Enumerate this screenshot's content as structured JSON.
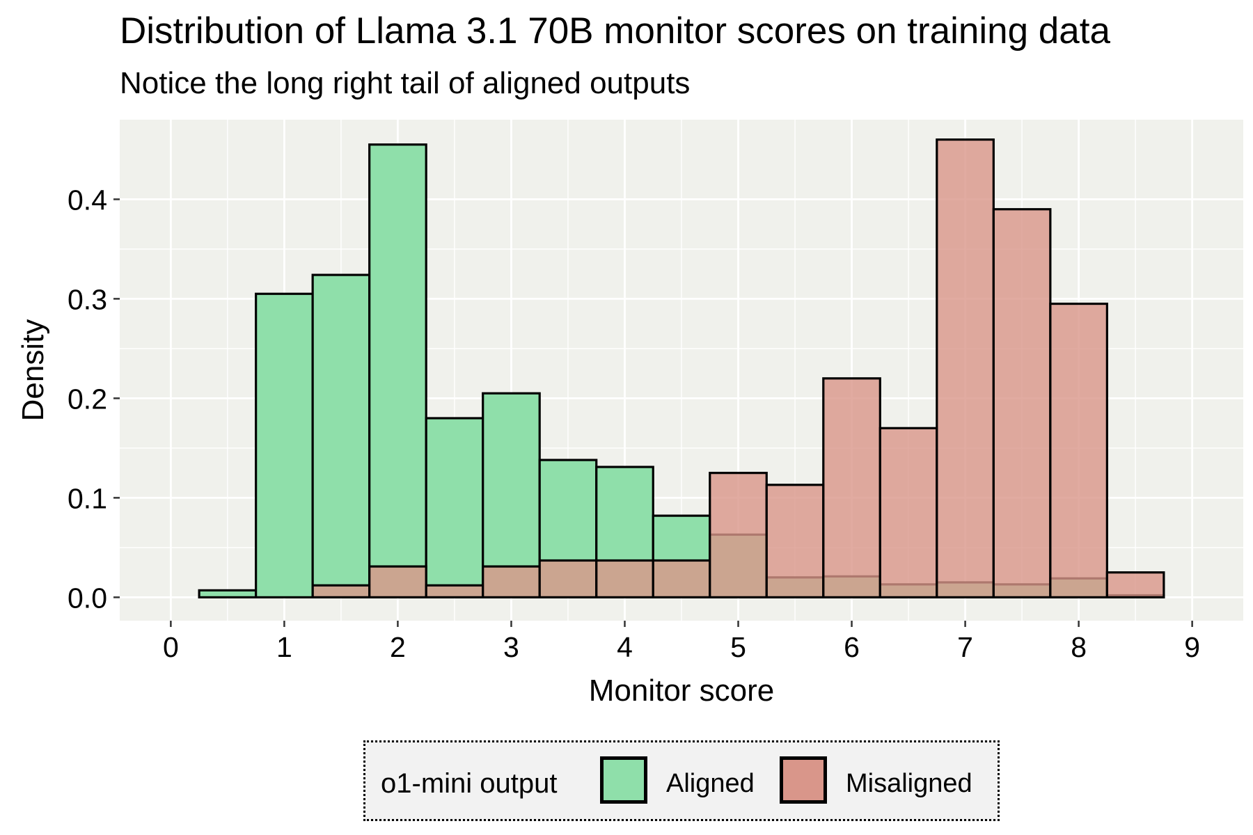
{
  "chart_data": {
    "type": "bar",
    "title": "Distribution of Llama 3.1 70B monitor scores on training data",
    "subtitle": "Notice the long right tail of aligned outputs",
    "xlabel": "Monitor score",
    "ylabel": "Density",
    "xlim": [
      -0.45,
      9.45
    ],
    "ylim": [
      -0.0235,
      0.48
    ],
    "x_ticks": [
      "0",
      "1",
      "2",
      "3",
      "4",
      "5",
      "6",
      "7",
      "8",
      "9"
    ],
    "y_ticks": [
      "0.0",
      "0.1",
      "0.2",
      "0.3",
      "0.4"
    ],
    "bin_width": 0.5,
    "bin_centers": [
      0.5,
      1.0,
      1.5,
      2.0,
      2.5,
      3.0,
      3.5,
      4.0,
      4.5,
      5.0,
      5.5,
      6.0,
      6.5,
      7.0,
      7.5,
      8.0,
      8.5
    ],
    "series": [
      {
        "name": "Aligned",
        "color": "#8fdfaa",
        "values": [
          0.007,
          0.305,
          0.324,
          0.455,
          0.18,
          0.205,
          0.138,
          0.131,
          0.082,
          0.063,
          0.02,
          0.021,
          0.013,
          0.015,
          0.013,
          0.019,
          0.002
        ]
      },
      {
        "name": "Misaligned",
        "color": "#d9968a",
        "values": [
          0.0,
          0.0,
          0.012,
          0.031,
          0.012,
          0.031,
          0.037,
          0.037,
          0.037,
          0.125,
          0.113,
          0.22,
          0.17,
          0.46,
          0.39,
          0.295,
          0.025
        ]
      }
    ],
    "grid": true,
    "background": "#f0f1ec",
    "legend_position": "bottom",
    "legend_title": "o1-mini output"
  }
}
